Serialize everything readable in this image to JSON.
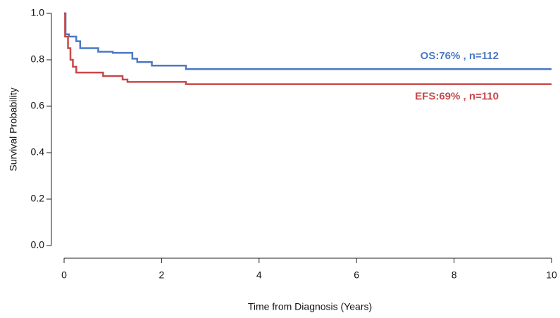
{
  "chart_data": {
    "type": "step",
    "xlabel": "Time from Diagnosis (Years)",
    "ylabel": "Survival Probability",
    "xlim": [
      0,
      10
    ],
    "xticks": [
      0,
      2,
      4,
      6,
      8,
      10
    ],
    "ylim": [
      0,
      1
    ],
    "yticks": [
      {
        "value": 0,
        "label": "0.0"
      },
      0.2,
      0.4,
      0.6,
      0.8,
      {
        "value": 1,
        "label": "1.0"
      }
    ],
    "series": [
      {
        "name": "OS:76% , n=112",
        "color": "#4a78c4",
        "x": [
          0,
          0.03,
          0.1,
          0.25,
          0.33,
          0.7,
          1.0,
          1.4,
          1.5,
          1.8,
          2.5,
          10
        ],
        "values": [
          1.0,
          0.91,
          0.9,
          0.88,
          0.85,
          0.835,
          0.83,
          0.805,
          0.79,
          0.775,
          0.76,
          0.76
        ]
      },
      {
        "name": "EFS:69% , n=110",
        "color": "#c8474a",
        "x": [
          0,
          0.02,
          0.08,
          0.13,
          0.18,
          0.25,
          0.8,
          1.2,
          1.3,
          2.5,
          10
        ],
        "values": [
          1.0,
          0.9,
          0.85,
          0.8,
          0.77,
          0.745,
          0.73,
          0.715,
          0.705,
          0.695,
          0.695
        ]
      }
    ]
  }
}
